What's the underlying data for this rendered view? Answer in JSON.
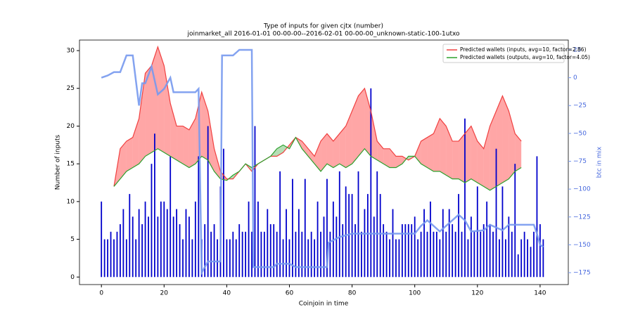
{
  "chart_data": {
    "type": "combo",
    "title": "Type of inputs for given cjtx (number)",
    "subtitle": "joinmarket_all 2016-01-01 00-00-00--2016-02-01 00-00-00_unknown-static-100-1utxo",
    "xlabel": "Coinjoin in time",
    "ylabel": "Number of inputs",
    "y2label": "btc in mix",
    "xlim": [
      -7,
      149
    ],
    "ylim": [
      -1,
      31.4
    ],
    "y2lim": [
      -185.7,
      33.8
    ],
    "xticks": [
      0,
      20,
      40,
      60,
      80,
      100,
      120,
      140
    ],
    "yticks": [
      0,
      5,
      10,
      15,
      20,
      25,
      30
    ],
    "y2ticks": [
      {
        "value": 25,
        "label": "25"
      },
      {
        "value": 0,
        "label": "0"
      },
      {
        "value": -25,
        "label": "−25"
      },
      {
        "value": -50,
        "label": "−50"
      },
      {
        "value": -75,
        "label": "−75"
      },
      {
        "value": -100,
        "label": "−100"
      },
      {
        "value": -125,
        "label": "−125"
      },
      {
        "value": -150,
        "label": "−150"
      },
      {
        "value": -175,
        "label": "−175"
      }
    ],
    "legend": "upper right",
    "bars": {
      "color": "#0000cc",
      "values": [
        10,
        5,
        5,
        6,
        5,
        6,
        7,
        9,
        5,
        11,
        8,
        5,
        9,
        7,
        10,
        8,
        15,
        19,
        8,
        10,
        10,
        9,
        16,
        8,
        9,
        7,
        5,
        9,
        8,
        5,
        10,
        16,
        5,
        7,
        20,
        6,
        7,
        5,
        12,
        17,
        5,
        5,
        6,
        5,
        7,
        6,
        6,
        10,
        6,
        20,
        10,
        6,
        6,
        9,
        7,
        7,
        6,
        14,
        5,
        9,
        5,
        13,
        6,
        9,
        6,
        13,
        5,
        6,
        5,
        10,
        6,
        8,
        13,
        6,
        10,
        8,
        14,
        7,
        12,
        11,
        11,
        7,
        14,
        6,
        9,
        11,
        25,
        8,
        14,
        11,
        7,
        6,
        5,
        9,
        5,
        5,
        7,
        7,
        7,
        7,
        8,
        5,
        6,
        9,
        6,
        10,
        6,
        6,
        5,
        9,
        6,
        9,
        7,
        6,
        11,
        6,
        21,
        5,
        8,
        6,
        12,
        6,
        7,
        10,
        7,
        6,
        17,
        5,
        12,
        5,
        8,
        6,
        15,
        3,
        5,
        6,
        5,
        4,
        6,
        16,
        7,
        5
      ]
    },
    "series": [
      {
        "name": "Predicted wallets (inputs, avg=10, factor=2.86)",
        "color": "#f04040",
        "x": [
          4,
          6,
          8,
          10,
          12,
          14,
          16,
          18,
          20,
          22,
          24,
          26,
          28,
          30,
          32,
          34,
          36,
          38,
          40,
          42,
          44,
          46,
          48,
          50,
          52,
          54,
          56,
          58,
          60,
          62,
          64,
          66,
          68,
          70,
          72,
          74,
          76,
          78,
          80,
          82,
          84,
          86,
          88,
          90,
          92,
          94,
          96,
          98,
          100,
          102,
          104,
          106,
          108,
          110,
          112,
          114,
          116,
          118,
          120,
          122,
          124,
          126,
          128,
          130,
          132,
          134
        ],
        "values": [
          12,
          17,
          18,
          18.5,
          21,
          27,
          28,
          30.5,
          28,
          23,
          20,
          20,
          19.5,
          21,
          24.5,
          22,
          17,
          14,
          13,
          13,
          14,
          15,
          14,
          15,
          15.5,
          16,
          16,
          16.5,
          17.5,
          18.5,
          18,
          17,
          16,
          18,
          19,
          18,
          19,
          20,
          22,
          24,
          25,
          22,
          18,
          17,
          17,
          16,
          16,
          15.5,
          16,
          18,
          18.5,
          19,
          21,
          20,
          18,
          18,
          19,
          20,
          18,
          17,
          20,
          22,
          24,
          22,
          19,
          18
        ]
      },
      {
        "name": "Predicted wallets (outputs, avg=10, factor=4.05)",
        "color": "#2ca02c",
        "x": [
          4,
          6,
          8,
          10,
          12,
          14,
          16,
          18,
          20,
          22,
          24,
          26,
          28,
          30,
          32,
          34,
          36,
          38,
          40,
          42,
          44,
          46,
          48,
          50,
          52,
          54,
          56,
          58,
          60,
          62,
          64,
          66,
          68,
          70,
          72,
          74,
          76,
          78,
          80,
          82,
          84,
          86,
          88,
          90,
          92,
          94,
          96,
          98,
          100,
          102,
          104,
          106,
          108,
          110,
          112,
          114,
          116,
          118,
          120,
          122,
          124,
          126,
          128,
          130,
          132,
          134
        ],
        "values": [
          12,
          13,
          14,
          14.5,
          15,
          16,
          16.5,
          17,
          16.5,
          16,
          15.5,
          15,
          14.5,
          15,
          16,
          15.5,
          14,
          13,
          12.8,
          13.5,
          14,
          15,
          14.5,
          15,
          15.5,
          16,
          17,
          17.5,
          17,
          18.5,
          17,
          16,
          15,
          14,
          15,
          14.5,
          15,
          14.5,
          15,
          16,
          17,
          16,
          15.5,
          15,
          14.5,
          14.5,
          15,
          16,
          16,
          15,
          14.5,
          14,
          14,
          13.5,
          13,
          13,
          12.5,
          13,
          12.5,
          12,
          11.5,
          12,
          12.5,
          13,
          14,
          14.5
        ]
      }
    ],
    "btc": {
      "color": "#7799ee",
      "axis": "y2",
      "x": [
        0,
        2,
        4,
        6,
        8,
        10,
        12,
        13,
        14,
        16,
        18,
        20,
        22,
        23,
        30,
        31,
        32,
        34,
        36,
        38,
        38.5,
        40,
        42,
        44,
        48,
        48.5,
        55,
        56,
        60,
        62,
        72,
        72.5,
        76,
        80,
        94,
        100,
        102,
        104,
        106,
        108,
        110,
        114,
        116,
        118,
        122,
        124,
        128,
        130,
        138,
        139,
        140,
        141
      ],
      "values": [
        0,
        2,
        5,
        5,
        20,
        20,
        -25,
        -5,
        -5,
        10,
        -15,
        -10,
        0,
        -13,
        -13,
        -10,
        -175,
        -165,
        -165,
        -165,
        20,
        20,
        20,
        25,
        25,
        -170,
        -170,
        -167,
        -167,
        -170,
        -170,
        -148,
        -143,
        -140,
        -140,
        -140,
        -133,
        -128,
        -133,
        -138,
        -133,
        -123,
        -128,
        -138,
        -137,
        -132,
        -137,
        -132,
        -132,
        -140,
        -150,
        -152
      ]
    }
  }
}
